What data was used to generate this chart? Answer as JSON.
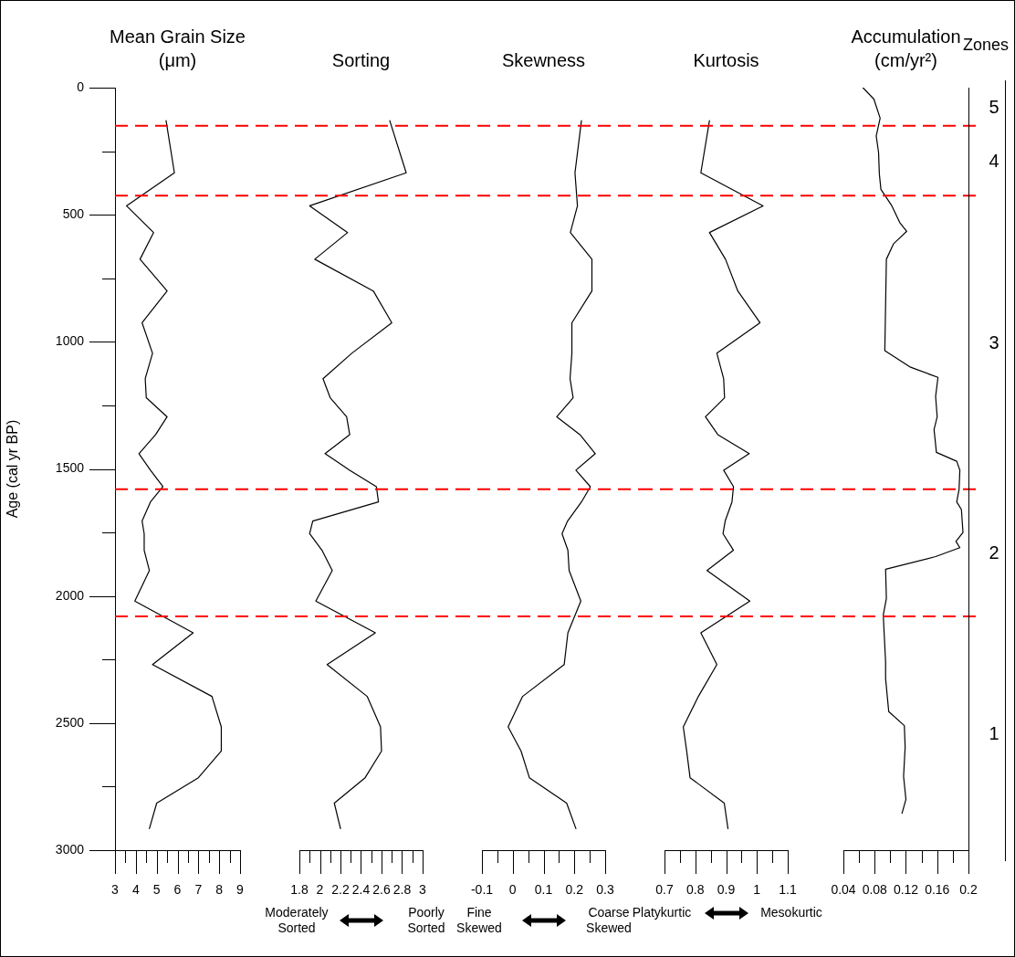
{
  "chart_data": [
    {
      "type": "line",
      "title": "Mean Grain Size (μm)",
      "ylabel": "Age (cal yr BP)",
      "color": "#000000",
      "marker": "none",
      "x": [
        5.45,
        5.85,
        3.55,
        4.85,
        4.2,
        5.5,
        4.3,
        4.8,
        4.45,
        4.5,
        5.5,
        4.95,
        4.15,
        4.7,
        5.3,
        4.7,
        4.3,
        4.4,
        4.4,
        4.65,
        3.95,
        6.75,
        4.8,
        7.65,
        8.1,
        8.1,
        7,
        5,
        4.65
      ],
      "values": [
        130,
        335,
        465,
        570,
        675,
        800,
        925,
        1045,
        1145,
        1220,
        1295,
        1365,
        1440,
        1505,
        1570,
        1630,
        1705,
        1755,
        1820,
        1900,
        2020,
        2145,
        2270,
        2395,
        2515,
        2610,
        2715,
        2815,
        2915
      ],
      "xlim": [
        3,
        9
      ],
      "xticks": [
        3,
        {
          "value": 3.5,
          "label": null
        },
        4,
        {
          "value": 4.5,
          "label": null
        },
        5,
        {
          "value": 5.5,
          "label": null
        },
        6,
        {
          "value": 6.5,
          "label": null
        },
        7,
        {
          "value": 7.5,
          "label": null
        },
        8,
        {
          "value": 8.5,
          "label": null
        },
        9
      ],
      "ylim": [
        3000,
        0
      ],
      "yticks": [
        0,
        {
          "value": 250,
          "label": null
        },
        500,
        {
          "value": 750,
          "label": null
        },
        1000,
        {
          "value": 1250,
          "label": null
        },
        1500,
        {
          "value": 1750,
          "label": null
        },
        2000,
        {
          "value": 2250,
          "label": null
        },
        2500,
        {
          "value": 2750,
          "label": null
        },
        3000
      ],
      "ref_lines": [
        {
          "axis": "y",
          "value": 150,
          "color": "#ff0000",
          "line_style": "dashed"
        },
        {
          "axis": "y",
          "value": 425,
          "color": "#ff0000",
          "line_style": "dashed"
        },
        {
          "axis": "y",
          "value": 1580,
          "color": "#ff0000",
          "line_style": "dashed"
        },
        {
          "axis": "y",
          "value": 2080,
          "color": "#ff0000",
          "line_style": "dashed"
        }
      ]
    },
    {
      "type": "line",
      "title": "Sorting",
      "color": "#000000",
      "marker": "none",
      "tick_labels": "x",
      "x": [
        2.68,
        2.84,
        1.9,
        2.27,
        1.95,
        2.52,
        2.7,
        2.31,
        2.03,
        2.1,
        2.26,
        2.29,
        2.05,
        2.29,
        2.55,
        2.57,
        1.93,
        1.9,
        2.02,
        2.12,
        1.96,
        2.54,
        2.07,
        2.46,
        2.59,
        2.6,
        2.44,
        2.14,
        2.2
      ],
      "values": [
        130,
        335,
        465,
        570,
        675,
        800,
        925,
        1045,
        1145,
        1220,
        1295,
        1365,
        1440,
        1505,
        1570,
        1630,
        1705,
        1755,
        1820,
        1900,
        2020,
        2145,
        2270,
        2395,
        2515,
        2610,
        2715,
        2815,
        2915
      ],
      "xlim": [
        1.8,
        3
      ],
      "xticks": [
        1.8,
        {
          "value": 1.9,
          "label": null
        },
        2,
        {
          "value": 2.1,
          "label": null
        },
        2.2,
        {
          "value": 2.3,
          "label": null
        },
        2.4,
        {
          "value": 2.5,
          "label": null
        },
        2.6,
        {
          "value": 2.7,
          "label": null
        },
        2.8,
        {
          "value": 2.9,
          "label": null
        },
        3
      ],
      "ylim": [
        3000,
        0
      ],
      "ref_lines": [
        {
          "axis": "y",
          "value": 150,
          "color": "#ff0000",
          "line_style": "dashed"
        },
        {
          "axis": "y",
          "value": 425,
          "color": "#ff0000",
          "line_style": "dashed"
        },
        {
          "axis": "y",
          "value": 1580,
          "color": "#ff0000",
          "line_style": "dashed"
        },
        {
          "axis": "y",
          "value": 2080,
          "color": "#ff0000",
          "line_style": "dashed"
        }
      ],
      "annotations": [
        "Moderately Sorted",
        "Poorly Sorted"
      ]
    },
    {
      "type": "line",
      "title": "Skewness",
      "color": "#000000",
      "marker": "none",
      "tick_labels": "x",
      "x": [
        0.223,
        0.202,
        0.21,
        0.187,
        0.257,
        0.257,
        0.192,
        0.192,
        0.186,
        0.196,
        0.143,
        0.218,
        0.268,
        0.205,
        0.252,
        0.223,
        0.178,
        0.16,
        0.179,
        0.183,
        0.221,
        0.179,
        0.167,
        0.032,
        -0.015,
        0.027,
        0.054,
        0.175,
        0.205
      ],
      "values": [
        130,
        335,
        465,
        570,
        675,
        800,
        925,
        1045,
        1145,
        1220,
        1295,
        1365,
        1440,
        1505,
        1570,
        1630,
        1705,
        1755,
        1820,
        1900,
        2020,
        2145,
        2270,
        2395,
        2515,
        2610,
        2715,
        2815,
        2915
      ],
      "xlim": [
        -0.1,
        0.3
      ],
      "xticks": [
        -0.1,
        {
          "value": -0.05,
          "label": null
        },
        0,
        {
          "value": 0.05,
          "label": null
        },
        0.1,
        {
          "value": 0.15,
          "label": null
        },
        0.2,
        {
          "value": 0.25,
          "label": null
        },
        0.3
      ],
      "ylim": [
        3000,
        0
      ],
      "ref_lines": [
        {
          "axis": "y",
          "value": 150,
          "color": "#ff0000",
          "line_style": "dashed"
        },
        {
          "axis": "y",
          "value": 425,
          "color": "#ff0000",
          "line_style": "dashed"
        },
        {
          "axis": "y",
          "value": 1580,
          "color": "#ff0000",
          "line_style": "dashed"
        },
        {
          "axis": "y",
          "value": 2080,
          "color": "#ff0000",
          "line_style": "dashed"
        }
      ],
      "annotations": [
        "Fine Skewed",
        "Coarse Skewed"
      ]
    },
    {
      "type": "line",
      "title": "Kurtosis",
      "color": "#000000",
      "marker": "none",
      "tick_labels": "x",
      "x": [
        0.846,
        0.818,
        1.02,
        0.846,
        0.898,
        0.938,
        1.01,
        0.87,
        0.892,
        0.895,
        0.833,
        0.873,
        0.975,
        0.892,
        0.924,
        0.919,
        0.897,
        0.89,
        0.924,
        0.838,
        0.977,
        0.818,
        0.87,
        0.81,
        0.761,
        0.772,
        0.783,
        0.894,
        0.906
      ],
      "values": [
        130,
        335,
        465,
        570,
        675,
        800,
        925,
        1045,
        1145,
        1220,
        1295,
        1365,
        1440,
        1505,
        1570,
        1630,
        1705,
        1755,
        1820,
        1900,
        2020,
        2145,
        2270,
        2395,
        2515,
        2610,
        2715,
        2815,
        2915
      ],
      "xlim": [
        0.7,
        1.1
      ],
      "xticks": [
        0.7,
        {
          "value": 0.75,
          "label": null
        },
        0.8,
        {
          "value": 0.85,
          "label": null
        },
        0.9,
        {
          "value": 0.95,
          "label": null
        },
        1,
        {
          "value": 1.05,
          "label": null
        },
        1.1
      ],
      "ylim": [
        3000,
        0
      ],
      "ref_lines": [
        {
          "axis": "y",
          "value": 150,
          "color": "#ff0000",
          "line_style": "dashed"
        },
        {
          "axis": "y",
          "value": 425,
          "color": "#ff0000",
          "line_style": "dashed"
        },
        {
          "axis": "y",
          "value": 1580,
          "color": "#ff0000",
          "line_style": "dashed"
        },
        {
          "axis": "y",
          "value": 2080,
          "color": "#ff0000",
          "line_style": "dashed"
        }
      ],
      "annotations": [
        "Platykurtic",
        "Mesokurtic"
      ]
    },
    {
      "type": "line",
      "title": "Accumulation (cm/yr²)",
      "color": "#000000",
      "marker": "none",
      "tick_labels": "x",
      "x": [
        0.065,
        0.079,
        0.087,
        0.082,
        0.085,
        0.086,
        0.088,
        0.102,
        0.112,
        0.121,
        0.104,
        0.095,
        0.093,
        0.126,
        0.161,
        0.158,
        0.16,
        0.156,
        0.159,
        0.185,
        0.189,
        0.188,
        0.185,
        0.191,
        0.193,
        0.184,
        0.189,
        0.158,
        0.094,
        0.095,
        0.091,
        0.094,
        0.094,
        0.098,
        0.118,
        0.119,
        0.117,
        0.12,
        0.115
      ],
      "values": [
        0,
        45,
        120,
        190,
        255,
        340,
        400,
        465,
        530,
        565,
        615,
        675,
        1035,
        1100,
        1140,
        1215,
        1295,
        1345,
        1435,
        1470,
        1505,
        1580,
        1630,
        1660,
        1750,
        1785,
        1810,
        1845,
        1895,
        2010,
        2075,
        2260,
        2325,
        2455,
        2510,
        2595,
        2710,
        2800,
        2855
      ],
      "xlim": [
        0.04,
        0.2
      ],
      "xticks": [
        0.04,
        {
          "value": 0.06,
          "label": null
        },
        0.08,
        {
          "value": 0.1,
          "label": null
        },
        0.12,
        {
          "value": 0.14,
          "label": null
        },
        0.16,
        {
          "value": 0.18,
          "label": null
        },
        0.2
      ],
      "ylim": [
        3000,
        0
      ],
      "ref_lines": [
        {
          "axis": "y",
          "value": 150,
          "color": "#ff0000",
          "line_style": "dashed"
        },
        {
          "axis": "y",
          "value": 425,
          "color": "#ff0000",
          "line_style": "dashed"
        },
        {
          "axis": "y",
          "value": 1580,
          "color": "#ff0000",
          "line_style": "dashed"
        },
        {
          "axis": "y",
          "value": 2080,
          "color": "#ff0000",
          "line_style": "dashed"
        }
      ]
    },
    {
      "type": "other",
      "title": "Zones",
      "annotations": [
        "5",
        "4",
        "3",
        "2",
        "1"
      ]
    }
  ]
}
